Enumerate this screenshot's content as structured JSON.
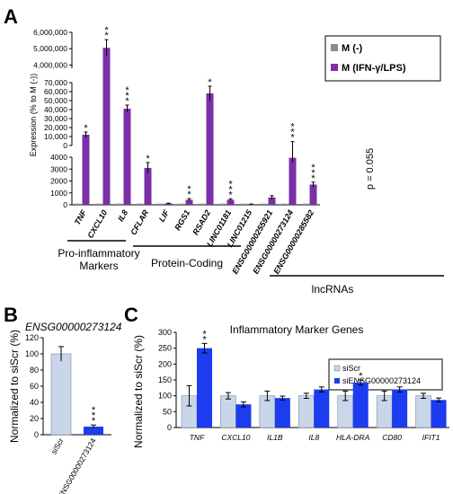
{
  "panel_labels": {
    "a": "A",
    "b": "B",
    "c": "C"
  },
  "colors": {
    "purple": "#7b2fa8",
    "grey": "#8c8c8c",
    "light_blue": "#c9d6ea",
    "blue": "#1c3cf0",
    "axis": "#000000"
  },
  "chart_data": [
    {
      "id": "A",
      "type": "bar",
      "ylabel": "Expression (% to M (-))",
      "legend": {
        "placement": "top-right",
        "entries": [
          "M (-)",
          "M (IFN-γ/LPS)"
        ]
      },
      "categories": [
        "TNF",
        "CXCL10",
        "IL8",
        "CFLAR",
        "LIF",
        "RGS1",
        "RSAD2",
        "LINC01181",
        "LINC01215",
        "ENSG00000255921",
        "ENSG00000273124",
        "ENSG00000285582"
      ],
      "series": [
        {
          "name": "M (-)",
          "values": [
            100,
            100,
            100,
            100,
            100,
            100,
            100,
            100,
            100,
            100,
            100,
            100
          ]
        },
        {
          "name": "M (IFN-γ/LPS)",
          "values": [
            12000,
            5050000,
            41000,
            3100,
            120,
            420,
            58000,
            420,
            60,
            620,
            3950,
            1700
          ]
        }
      ],
      "errors": [
        3000,
        500000,
        4000,
        450,
        20,
        100,
        8000,
        80,
        10,
        150,
        350,
        200
      ],
      "significance": [
        "*",
        "**",
        "***",
        "*",
        "",
        "**",
        "*",
        "***",
        "",
        "",
        "***",
        "***"
      ],
      "annotation": "p = 0.055",
      "broken_axis": true,
      "y_ticks": {
        "top": [
          "4,000,000",
          "5,000,000",
          "6,000,000"
        ],
        "middle": [
          "0",
          "10,000",
          "20,000",
          "30,000",
          "40,000",
          "50,000",
          "60,000",
          "70,000"
        ],
        "bottom": [
          "0",
          "1000",
          "2000",
          "3000",
          "4000"
        ]
      },
      "groups": [
        "Pro-inflammatory Markers",
        "Protein-Coding",
        "lncRNAs"
      ]
    },
    {
      "id": "B",
      "type": "bar",
      "title": "ENSG00000273124",
      "ylabel": "Normalized to siScr (%)",
      "categories": [
        "siScr",
        "siENSG00000273124"
      ],
      "values": [
        100,
        10
      ],
      "errors": [
        9,
        2
      ],
      "significance": [
        "",
        "***"
      ],
      "ylim": [
        0,
        120
      ],
      "y_ticks": [
        "0",
        "20",
        "40",
        "60",
        "80",
        "100",
        "120"
      ]
    },
    {
      "id": "C",
      "type": "bar",
      "title": "Inflammatory Marker Genes",
      "ylabel": "Normalized to siScr (%)",
      "legend": {
        "placement": "top-right",
        "entries": [
          "siScr",
          "siENSG00000273124"
        ]
      },
      "categories": [
        "TNF",
        "CXCL10",
        "IL1B",
        "IL8",
        "HLA-DRA",
        "CD80",
        "IFIT1"
      ],
      "series": [
        {
          "name": "siScr",
          "values": [
            100,
            100,
            100,
            100,
            100,
            100,
            100
          ],
          "errors": [
            32,
            10,
            15,
            8,
            15,
            15,
            8
          ]
        },
        {
          "name": "siENSG00000273124",
          "values": [
            250,
            73,
            93,
            120,
            142,
            120,
            87
          ],
          "errors": [
            15,
            8,
            6,
            8,
            8,
            8,
            6
          ]
        }
      ],
      "significance": [
        "**",
        "",
        "",
        "",
        "*",
        "",
        ""
      ],
      "ylim": [
        0,
        300
      ],
      "y_ticks": [
        "0",
        "50",
        "100",
        "150",
        "200",
        "250",
        "300"
      ]
    }
  ]
}
